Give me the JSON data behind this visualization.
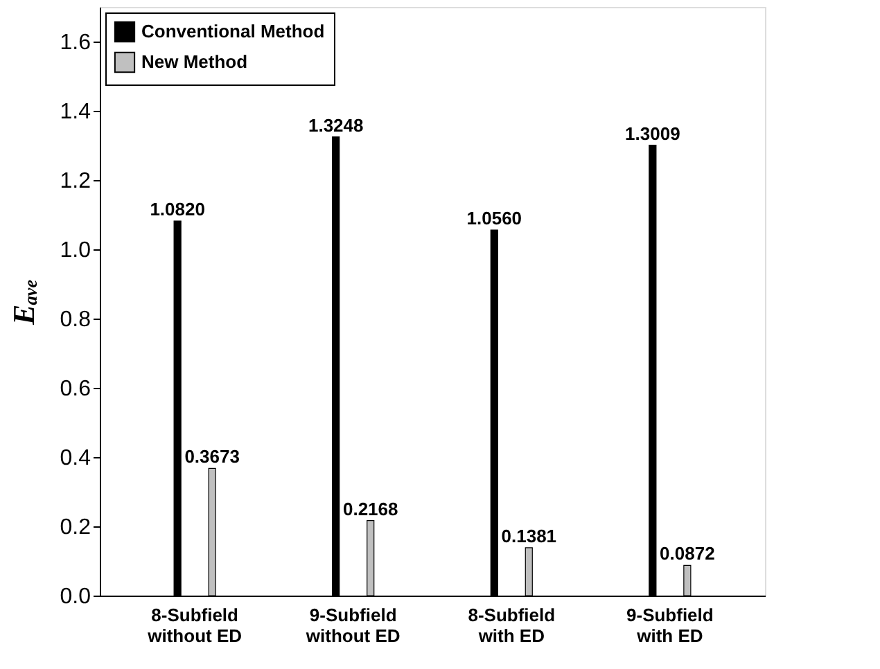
{
  "chart_data": {
    "type": "bar",
    "ylabel": "Eₐᵥₑ",
    "categories": [
      "8-Subfield\nwithout ED",
      "9-Subfield\nwithout ED",
      "8-Subfield\nwith ED",
      "9-Subfield\nwith ED"
    ],
    "series": [
      {
        "name": "Conventional Method",
        "color": "#000000",
        "values": [
          1.082,
          1.3248,
          1.056,
          1.3009
        ],
        "value_labels": [
          "1.0820",
          "1.3248",
          "1.0560",
          "1.3009"
        ]
      },
      {
        "name": "New Method",
        "color": "#c0c0c0",
        "values": [
          0.3673,
          0.2168,
          0.1381,
          0.0872
        ],
        "value_labels": [
          "0.3673",
          "0.2168",
          "0.1381",
          "0.0872"
        ]
      }
    ],
    "ylim": [
      0,
      1.7
    ],
    "yticks": [
      {
        "value": 0,
        "label": "0.0"
      },
      0.2,
      0.4,
      0.6,
      0.8,
      {
        "value": 1,
        "label": "1.0"
      },
      1.2,
      1.4,
      1.6
    ],
    "legend": "top left",
    "grid": false
  }
}
